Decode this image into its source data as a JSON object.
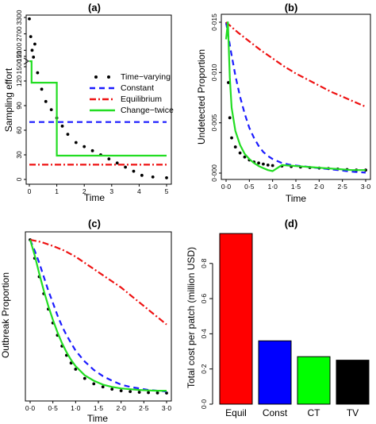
{
  "chart_data": [
    {
      "panel": "(a)",
      "type": "line",
      "title": "(a)",
      "xlabel": "Time",
      "ylabel": "Sampling effort",
      "xlim": [
        0,
        5
      ],
      "x_ticks": [
        0,
        1,
        2,
        3,
        4,
        5
      ],
      "y_ticks_lower": [
        0,
        30,
        60,
        90,
        120,
        150
      ],
      "y_ticks_upper": [
        1500,
        2100,
        2700,
        3300
      ],
      "axis_break": true,
      "legend_position": "right",
      "series": [
        {
          "name": "Time−varying",
          "style": "points",
          "color": "#000000",
          "x": [
            0,
            0.05,
            0.1,
            0.15,
            0.2,
            0.3,
            0.45,
            0.6,
            0.8,
            1.0,
            1.2,
            1.4,
            1.7,
            2.0,
            2.3,
            2.6,
            2.9,
            3.2,
            3.5,
            3.8,
            4.1,
            4.5,
            5.0
          ],
          "y": [
            3250,
            2600,
            2100,
            1850,
            165,
            130,
            110,
            95,
            85,
            75,
            65,
            55,
            45,
            40,
            35,
            30,
            25,
            20,
            15,
            10,
            5,
            3,
            2
          ]
        },
        {
          "name": "Constant",
          "style": "dashed",
          "color": "#1a1aff",
          "x": [
            0,
            5
          ],
          "y": [
            70,
            70
          ]
        },
        {
          "name": "Equilibrium",
          "style": "dotdash",
          "color": "#ee1111",
          "x": [
            0,
            5
          ],
          "y": [
            18,
            18
          ]
        },
        {
          "name": "Change−twice",
          "style": "solid",
          "color": "#22dd22",
          "x": [
            0,
            0.08,
            0.08,
            1.0,
            1.0,
            5.0
          ],
          "y": [
            1700,
            1700,
            118,
            118,
            29,
            29
          ]
        }
      ]
    },
    {
      "panel": "(b)",
      "type": "line",
      "title": "(b)",
      "xlabel": "Time",
      "ylabel": "Undetected Proportion",
      "xlim": [
        0,
        3
      ],
      "ylim": [
        0,
        0.015
      ],
      "x_ticks": [
        "0·0",
        "0·5",
        "1·0",
        "1·5",
        "2·0",
        "2·5",
        "3·0"
      ],
      "y_ticks": [
        "0·000",
        "0·005",
        "0·010",
        "0·015"
      ],
      "series": [
        {
          "name": "Time−varying",
          "style": "points",
          "color": "#000000",
          "x": [
            0.02,
            0.05,
            0.08,
            0.12,
            0.2,
            0.3,
            0.4,
            0.5,
            0.6,
            0.7,
            0.8,
            0.9,
            1.0,
            1.2,
            1.4,
            1.6,
            1.8,
            2.0,
            2.2,
            2.4,
            2.6,
            2.8,
            3.0
          ],
          "y": [
            0.0148,
            0.009,
            0.0055,
            0.0035,
            0.0026,
            0.002,
            0.0016,
            0.0013,
            0.0011,
            0.001,
            0.0009,
            0.0008,
            0.00075,
            0.0007,
            0.00065,
            0.0006,
            0.00055,
            0.0005,
            0.00045,
            0.0004,
            0.00035,
            0.0003,
            0.0003
          ]
        },
        {
          "name": "Constant",
          "style": "dashed",
          "color": "#1a1aff",
          "x": [
            0,
            0.1,
            0.2,
            0.3,
            0.4,
            0.5,
            0.6,
            0.7,
            0.8,
            0.9,
            1.0,
            1.2,
            1.4,
            1.6,
            1.8,
            2.0,
            2.2,
            2.4,
            2.6,
            2.8,
            3.0
          ],
          "y": [
            0.015,
            0.0122,
            0.0097,
            0.0076,
            0.0059,
            0.0045,
            0.0035,
            0.0027,
            0.0021,
            0.0017,
            0.0014,
            0.001,
            0.0008,
            0.0007,
            0.0006,
            0.0005,
            0.0004,
            0.0003,
            0.0002,
            0.0001,
            5e-05
          ]
        },
        {
          "name": "Equilibrium",
          "style": "dotdash",
          "color": "#ee1111",
          "x": [
            0,
            0.25,
            0.5,
            0.75,
            1.0,
            1.25,
            1.5,
            1.75,
            2.0,
            2.25,
            2.5,
            2.75,
            3.0
          ],
          "y": [
            0.015,
            0.014,
            0.0131,
            0.0122,
            0.0114,
            0.0106,
            0.0099,
            0.0093,
            0.0087,
            0.0081,
            0.0076,
            0.0071,
            0.0066
          ]
        },
        {
          "name": "Change−twice",
          "style": "solid",
          "color": "#22dd22",
          "x": [
            0,
            0.04,
            0.08,
            0.12,
            0.2,
            0.3,
            0.4,
            0.5,
            0.6,
            0.7,
            0.8,
            0.9,
            1.0,
            1.1,
            1.2,
            1.5,
            1.8,
            2.1,
            2.4,
            2.7,
            3.0
          ],
          "y": [
            0.0133,
            0.015,
            0.0095,
            0.0065,
            0.0042,
            0.0028,
            0.0019,
            0.0014,
            0.001,
            0.0007,
            0.0005,
            0.0003,
            0.0002,
            0.0005,
            0.0008,
            0.0007,
            0.0006,
            0.0005,
            0.0004,
            0.0003,
            0.0003
          ]
        }
      ]
    },
    {
      "panel": "(c)",
      "type": "line",
      "title": "(c)",
      "xlabel": "Time",
      "ylabel": "Outbreak Proportion",
      "xlim": [
        0,
        3
      ],
      "x_ticks": [
        "0·0",
        "0·5",
        "1·0",
        "1·5",
        "2·0",
        "2·5",
        "3·0"
      ],
      "series": [
        {
          "name": "Time−varying",
          "style": "points",
          "color": "#000000",
          "x": [
            0,
            0.1,
            0.2,
            0.3,
            0.4,
            0.5,
            0.6,
            0.7,
            0.8,
            0.9,
            1.0,
            1.2,
            1.4,
            1.6,
            1.8,
            2.0,
            2.2,
            2.4,
            2.6,
            2.8,
            3.0
          ],
          "y": [
            1.0,
            0.88,
            0.76,
            0.65,
            0.55,
            0.46,
            0.38,
            0.31,
            0.25,
            0.2,
            0.16,
            0.1,
            0.065,
            0.045,
            0.03,
            0.02,
            0.015,
            0.01,
            0.008,
            0.006,
            0.005
          ]
        },
        {
          "name": "Constant",
          "style": "dashed",
          "color": "#1a1aff",
          "x": [
            0,
            0.1,
            0.2,
            0.3,
            0.4,
            0.5,
            0.6,
            0.7,
            0.8,
            0.9,
            1.0,
            1.2,
            1.4,
            1.6,
            1.8,
            2.0,
            2.2,
            2.4,
            2.6,
            2.8,
            3.0
          ],
          "y": [
            1.0,
            0.93,
            0.85,
            0.76,
            0.67,
            0.59,
            0.51,
            0.44,
            0.38,
            0.33,
            0.28,
            0.21,
            0.155,
            0.115,
            0.085,
            0.06,
            0.045,
            0.035,
            0.025,
            0.02,
            0.015
          ]
        },
        {
          "name": "Equilibrium",
          "style": "dotdash",
          "color": "#ee1111",
          "x": [
            0,
            0.25,
            0.5,
            0.75,
            1.0,
            1.25,
            1.5,
            1.75,
            2.0,
            2.25,
            2.5,
            2.75,
            3.0
          ],
          "y": [
            1.0,
            0.985,
            0.96,
            0.93,
            0.89,
            0.84,
            0.79,
            0.74,
            0.69,
            0.63,
            0.57,
            0.51,
            0.45
          ]
        },
        {
          "name": "Change−twice",
          "style": "solid",
          "color": "#22dd22",
          "x": [
            0,
            0.1,
            0.2,
            0.3,
            0.4,
            0.5,
            0.6,
            0.7,
            0.8,
            0.9,
            1.0,
            1.2,
            1.4,
            1.6,
            1.8,
            2.0,
            2.2,
            2.4,
            2.6,
            2.8,
            3.0
          ],
          "y": [
            1.0,
            0.9,
            0.78,
            0.67,
            0.57,
            0.48,
            0.4,
            0.33,
            0.27,
            0.22,
            0.18,
            0.12,
            0.085,
            0.06,
            0.045,
            0.035,
            0.03,
            0.025,
            0.022,
            0.02,
            0.02
          ]
        }
      ]
    },
    {
      "panel": "(d)",
      "type": "bar",
      "title": "(d)",
      "xlabel": "",
      "ylabel": "Total cost per patch (million USD)",
      "ylim": [
        0,
        1.0
      ],
      "y_ticks": [
        "0·0",
        "0·2",
        "0·4",
        "0·6",
        "0·8"
      ],
      "categories": [
        "Equil",
        "Const",
        "CT",
        "TV"
      ],
      "values": [
        0.97,
        0.36,
        0.27,
        0.25
      ],
      "colors": [
        "#ff0000",
        "#0000ff",
        "#00ff00",
        "#000000"
      ]
    }
  ]
}
